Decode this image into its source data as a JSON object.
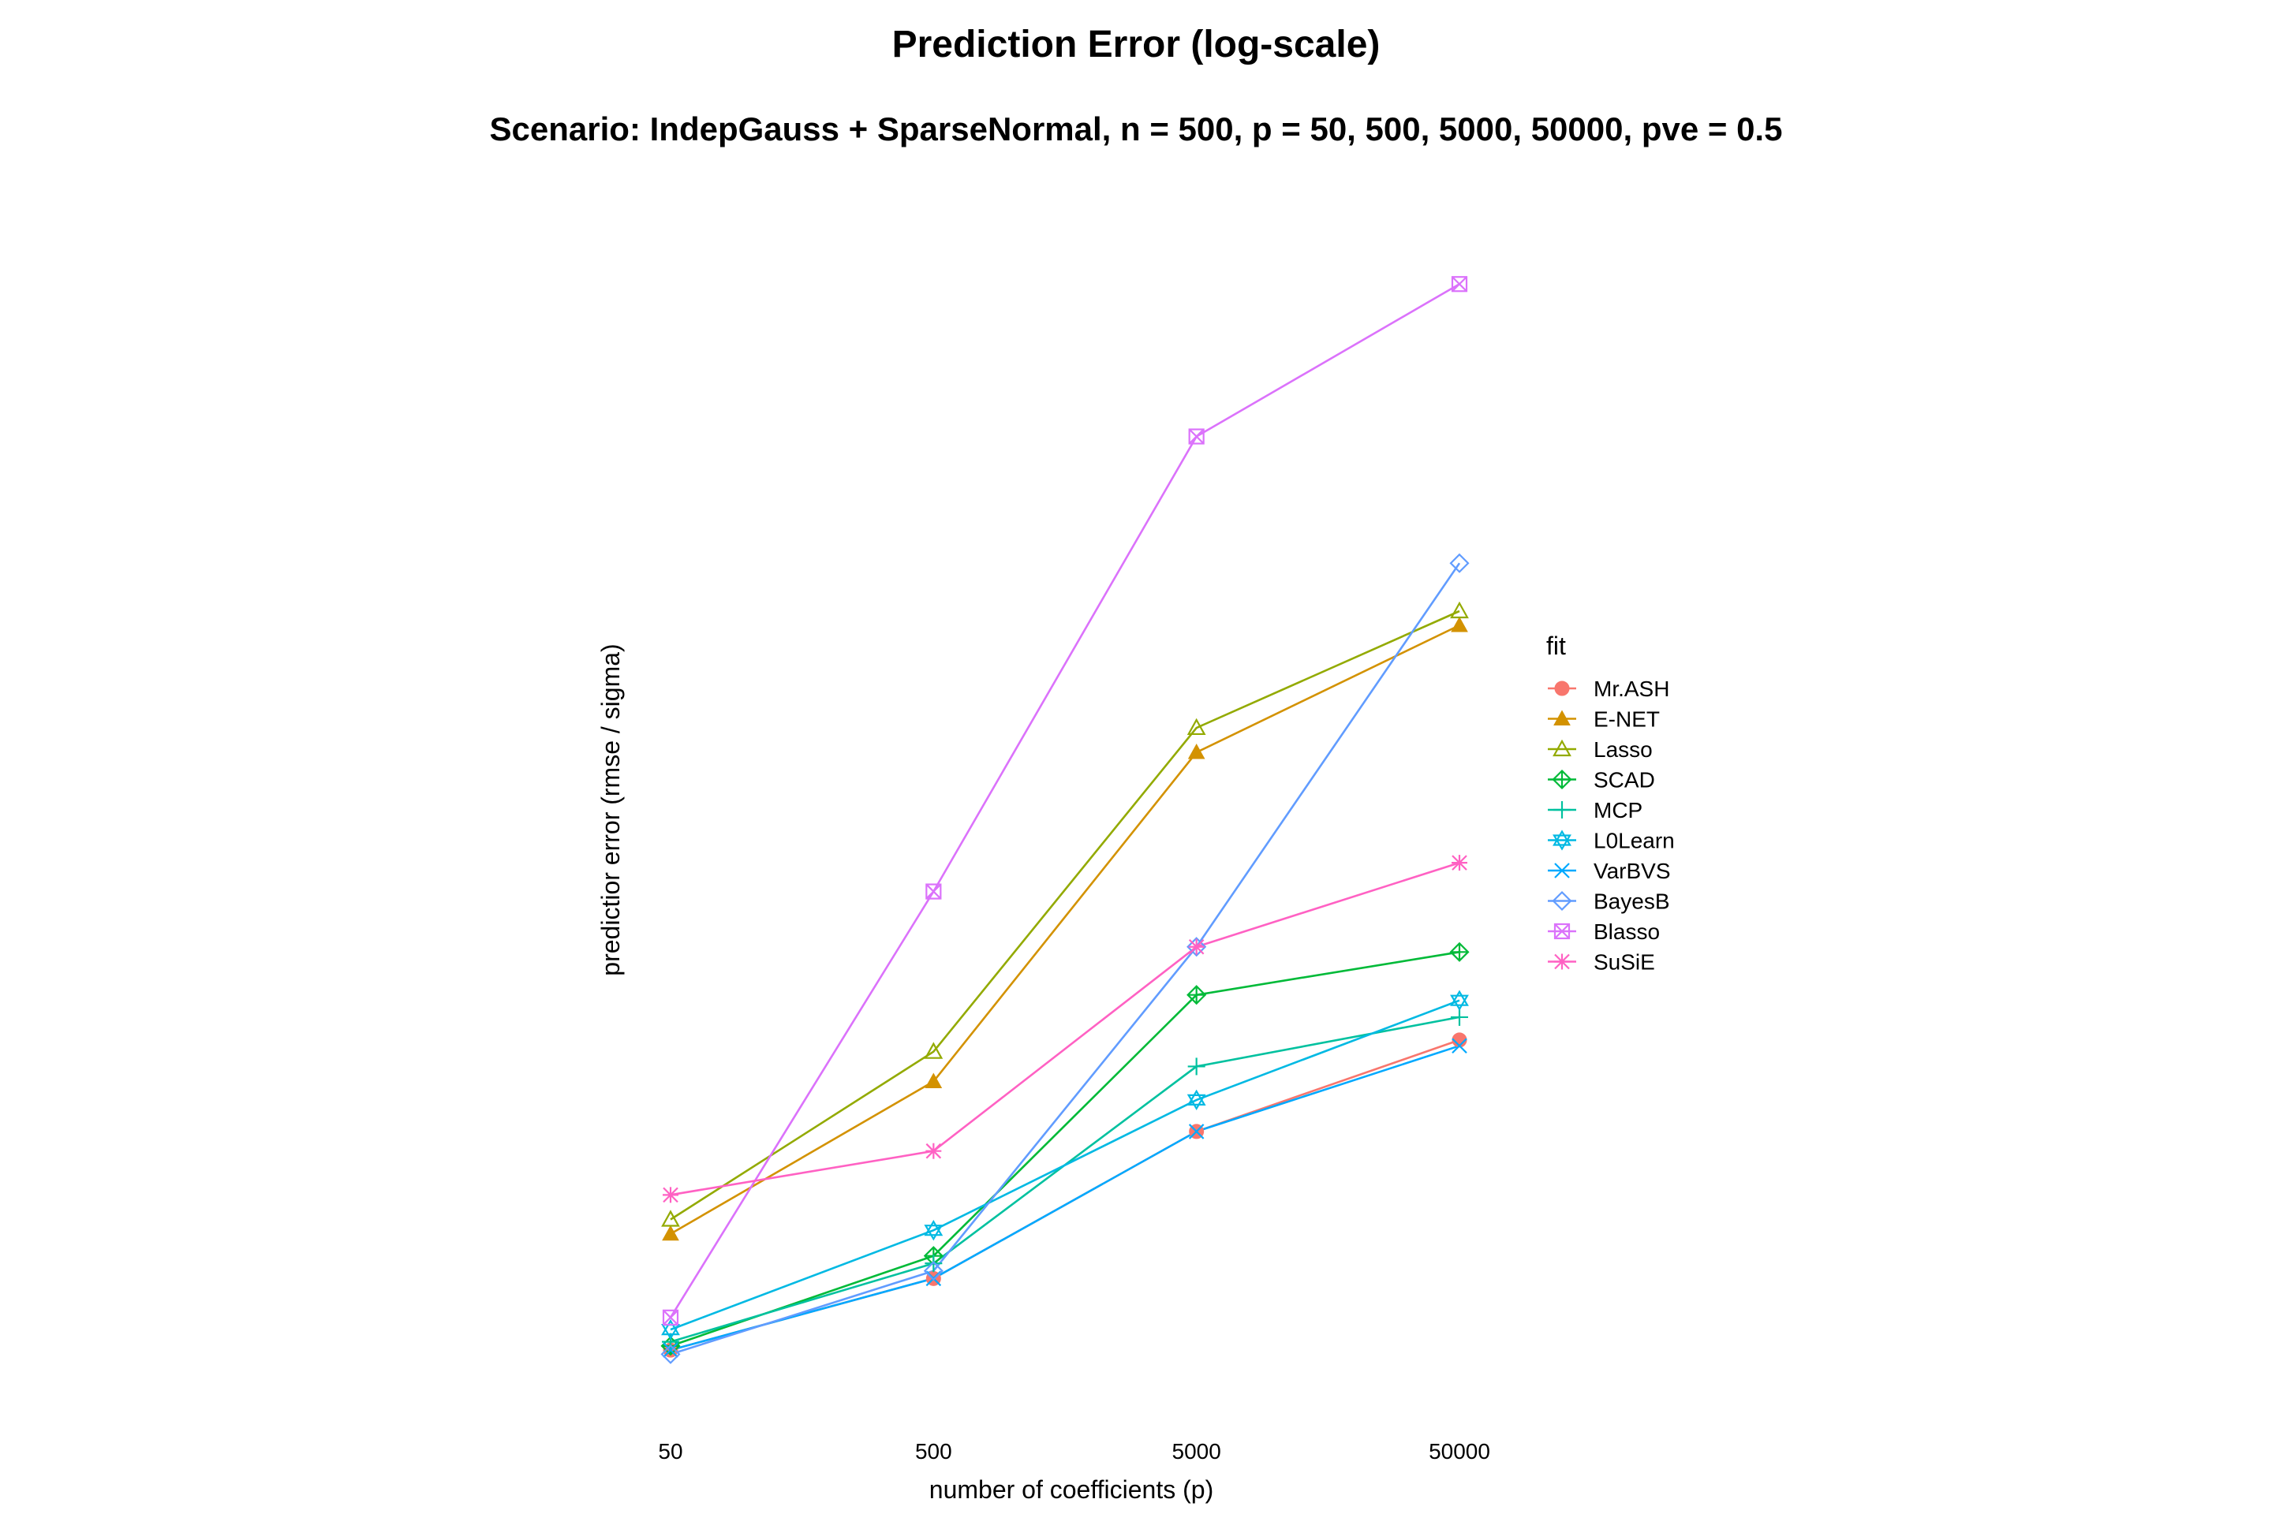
{
  "chart_data": {
    "type": "line",
    "title": "Prediction Error (log-scale)",
    "subtitle": "Scenario: IndepGauss + SparseNormal, n = 500, p = 50, 500, 5000, 50000, pve = 0.5",
    "xlabel": "number of coefficients (p)",
    "ylabel": "predictior error (rmse / sigma)",
    "x_scale": "log",
    "y_scale": "log",
    "x": [
      50,
      500,
      5000,
      50000
    ],
    "ylim": [
      1.0,
      3.8
    ],
    "grid": false,
    "legend_title": "fit",
    "legend_position": "right",
    "series": [
      {
        "name": "Mr.ASH",
        "color": "#F8766D",
        "marker": "filled-circle",
        "values": [
          1.04,
          1.13,
          1.34,
          1.49
        ]
      },
      {
        "name": "E-NET",
        "color": "#D39200",
        "marker": "filled-triangle",
        "values": [
          1.19,
          1.42,
          2.08,
          2.41
        ]
      },
      {
        "name": "Lasso",
        "color": "#93AA00",
        "marker": "open-triangle",
        "values": [
          1.21,
          1.47,
          2.14,
          2.45
        ]
      },
      {
        "name": "SCAD",
        "color": "#00BA38",
        "marker": "open-diamond-plus",
        "values": [
          1.045,
          1.16,
          1.57,
          1.65
        ]
      },
      {
        "name": "MCP",
        "color": "#00C19F",
        "marker": "plus",
        "values": [
          1.05,
          1.15,
          1.445,
          1.53
        ]
      },
      {
        "name": "L0Learn",
        "color": "#00B9E3",
        "marker": "open-star-triangle",
        "values": [
          1.065,
          1.195,
          1.39,
          1.56
        ]
      },
      {
        "name": "VarBVS",
        "color": "#00A9FF",
        "marker": "x",
        "values": [
          1.04,
          1.13,
          1.34,
          1.48
        ]
      },
      {
        "name": "BayesB",
        "color": "#619CFF",
        "marker": "open-diamond",
        "values": [
          1.035,
          1.14,
          1.66,
          2.59
        ]
      },
      {
        "name": "Blasso",
        "color": "#DB72FB",
        "marker": "open-square-x",
        "values": [
          1.08,
          1.77,
          3.0,
          3.58
        ]
      },
      {
        "name": "SuSiE",
        "color": "#FF61C3",
        "marker": "asterisk",
        "values": [
          1.245,
          1.31,
          1.66,
          1.83
        ]
      }
    ]
  }
}
